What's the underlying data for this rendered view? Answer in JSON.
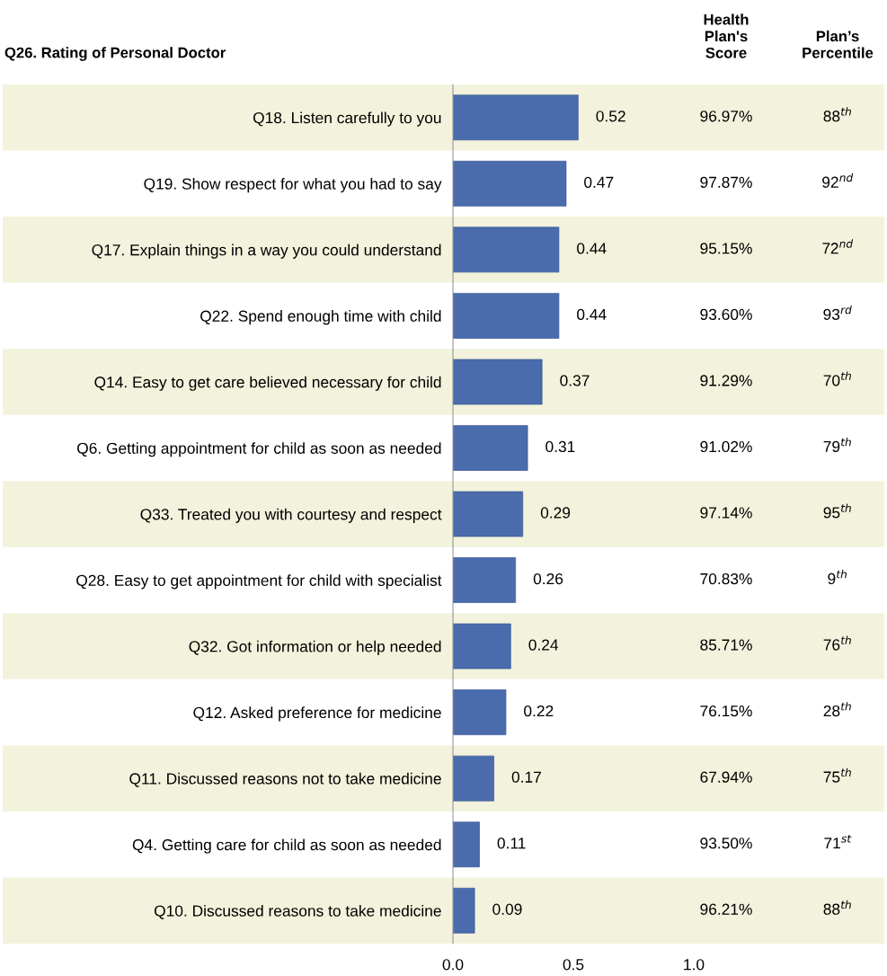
{
  "chart_data": {
    "type": "bar",
    "orientation": "horizontal",
    "title": "Q26. Rating of Personal Doctor",
    "categories": [
      "Q18. Listen carefully to you",
      "Q19. Show respect for what you had to say",
      "Q17. Explain things in a way you could understand",
      "Q22. Spend enough time with child",
      "Q14. Easy to get care believed necessary for child",
      "Q6. Getting appointment for child as soon as needed",
      "Q33. Treated you with courtesy and respect",
      "Q28. Easy to get appointment for child with specialist",
      "Q32. Got information or help needed",
      "Q12. Asked preference for medicine",
      "Q11. Discussed reasons not to take medicine",
      "Q4. Getting care for child as soon as needed",
      "Q10. Discussed reasons to take medicine"
    ],
    "values": [
      0.52,
      0.47,
      0.44,
      0.44,
      0.37,
      0.31,
      0.29,
      0.26,
      0.24,
      0.22,
      0.17,
      0.11,
      0.09
    ],
    "color": "#4a6cad",
    "data_labels": true,
    "xlim": [
      0,
      1
    ],
    "xticks": [
      {
        "value": 0,
        "label": "0.0"
      },
      {
        "value": 0.5,
        "label": "0.5"
      },
      {
        "value": 1,
        "label": "1.0"
      }
    ],
    "grid": false,
    "annotations": [
      "Health\nPlan's\nScore",
      "Plan’s\nPercentile",
      "96.97%",
      "97.87%",
      "95.15%",
      "93.60%",
      "91.29%",
      "91.02%",
      "97.14%",
      "70.83%",
      "85.71%",
      "76.15%",
      "67.94%",
      "93.50%",
      "96.21%",
      "88$^{th}$",
      "92$^{nd}$",
      "72$^{nd}$",
      "93$^{rd}$",
      "70$^{th}$",
      "79$^{th}$",
      "95$^{th}$",
      "9$^{th}$",
      "76$^{th}$",
      "28$^{th}$",
      "75$^{th}$",
      "71$^{st}$",
      "88$^{th}$"
    ]
  }
}
